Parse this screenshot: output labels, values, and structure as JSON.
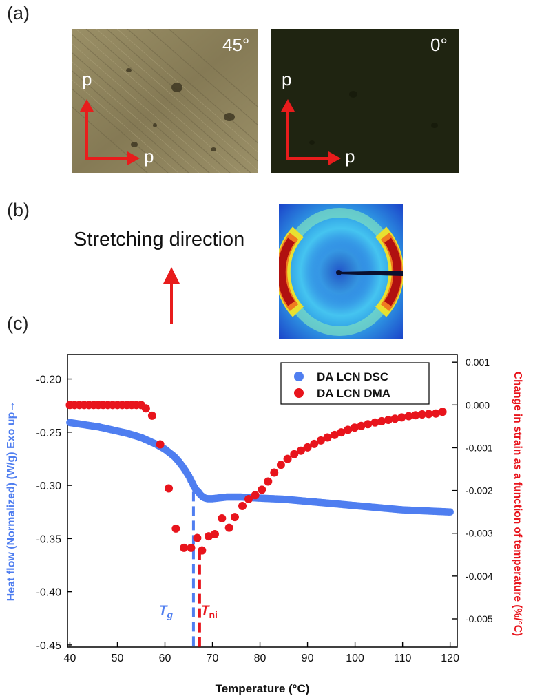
{
  "panels": {
    "a_label": "(a)",
    "b_label": "(b)",
    "c_label": "(c)"
  },
  "micrographs": {
    "left": {
      "angle": "45°",
      "polarizer_v": "p",
      "polarizer_h": "p"
    },
    "right": {
      "angle": "0°",
      "polarizer_v": "p",
      "polarizer_h": "p"
    }
  },
  "panel_b": {
    "stretch_label": "Stretching direction"
  },
  "colors": {
    "dsc": "#4f7ef0",
    "dma": "#e8141c",
    "arrow": "#e81c1c",
    "tg_line": "#4f7ef0",
    "tni_line": "#e8141c"
  },
  "chart_data": {
    "type": "scatter",
    "xlabel": "Temperature (°C)",
    "ylabel": "Heat flow (Normalized) (W/g) Exo up→",
    "y2label": "Change in strain as a function of temperature (%/°C)",
    "xlim": [
      39.5,
      121.5
    ],
    "ylim": [
      -0.452,
      -0.177
    ],
    "y2lim": [
      -0.00566,
      0.00118
    ],
    "x_ticks": [
      40,
      50,
      60,
      70,
      80,
      90,
      100,
      110,
      120
    ],
    "y_ticks": [
      -0.2,
      -0.25,
      -0.3,
      -0.35,
      -0.4,
      -0.45
    ],
    "y_tick_labels": [
      "-0.20",
      "-0.25",
      "-0.30",
      "-0.35",
      "-0.40",
      "-0.45"
    ],
    "y2_ticks": [
      0.001,
      0.0,
      -0.001,
      -0.002,
      -0.003,
      -0.004,
      -0.005
    ],
    "y2_tick_labels": [
      "0.001",
      "0.000",
      "-0.001",
      "-0.002",
      "-0.003",
      "-0.004",
      "-0.005"
    ],
    "legend_position": "top-right",
    "series": [
      {
        "name": "DA LCN DSC",
        "axis": "left",
        "x": [
          40,
          43,
          46,
          49,
          52,
          55,
          58,
          60,
          62,
          63,
          64,
          65,
          66,
          66.5,
          67,
          67.5,
          68,
          68.5,
          69,
          70,
          71,
          73,
          76,
          80,
          85,
          90,
          95,
          100,
          105,
          110,
          115,
          120
        ],
        "y": [
          -0.241,
          -0.243,
          -0.245,
          -0.248,
          -0.251,
          -0.255,
          -0.261,
          -0.266,
          -0.273,
          -0.278,
          -0.284,
          -0.291,
          -0.3,
          -0.304,
          -0.306,
          -0.309,
          -0.311,
          -0.312,
          -0.3125,
          -0.3125,
          -0.312,
          -0.311,
          -0.311,
          -0.312,
          -0.313,
          -0.315,
          -0.317,
          -0.319,
          -0.321,
          -0.323,
          -0.324,
          -0.325
        ]
      },
      {
        "name": "DA LCN DMA",
        "axis": "right",
        "x": [
          40,
          41,
          42,
          43,
          44,
          45,
          46,
          47,
          48,
          49,
          50,
          51,
          52,
          53,
          54,
          55,
          56,
          57.3,
          59,
          60.8,
          62.3,
          64,
          65.5,
          66.8,
          67.8,
          69.2,
          70.5,
          72,
          73.5,
          74.7,
          76.3,
          77.6,
          79,
          80.4,
          81.7,
          83,
          84.4,
          85.8,
          87.2,
          88.6,
          90,
          91.4,
          92.8,
          94.2,
          95.7,
          97.1,
          98.5,
          99.9,
          101.3,
          102.7,
          104.2,
          105.6,
          107,
          108.4,
          109.8,
          111.3,
          112.7,
          114.1,
          115.5,
          117,
          118.4
        ],
        "y": [
          0.0,
          0.0,
          0.0,
          0.0,
          0.0,
          0.0,
          0.0,
          0.0,
          0.0,
          0.0,
          0.0,
          0.0,
          0.0,
          0.0,
          0.0,
          0.0,
          -8e-05,
          -0.00025,
          -0.00092,
          -0.00195,
          -0.00289,
          -0.00334,
          -0.00334,
          -0.00311,
          -0.0034,
          -0.00307,
          -0.00302,
          -0.00265,
          -0.00287,
          -0.00262,
          -0.00236,
          -0.0022,
          -0.00211,
          -0.00198,
          -0.00179,
          -0.00158,
          -0.0014,
          -0.00126,
          -0.00115,
          -0.00107,
          -0.00099,
          -0.00091,
          -0.00083,
          -0.00076,
          -0.0007,
          -0.00064,
          -0.00058,
          -0.00053,
          -0.00049,
          -0.00045,
          -0.00041,
          -0.00038,
          -0.00035,
          -0.00032,
          -0.00029,
          -0.00026,
          -0.00024,
          -0.00022,
          -0.00021,
          -0.0002,
          -0.00016
        ]
      }
    ],
    "annotations": [
      {
        "text": "T",
        "sub": "g",
        "x": 66.0,
        "color": "#4f7ef0"
      },
      {
        "text": "T",
        "sub": "ni",
        "x": 67.3,
        "color": "#e8141c"
      }
    ]
  }
}
